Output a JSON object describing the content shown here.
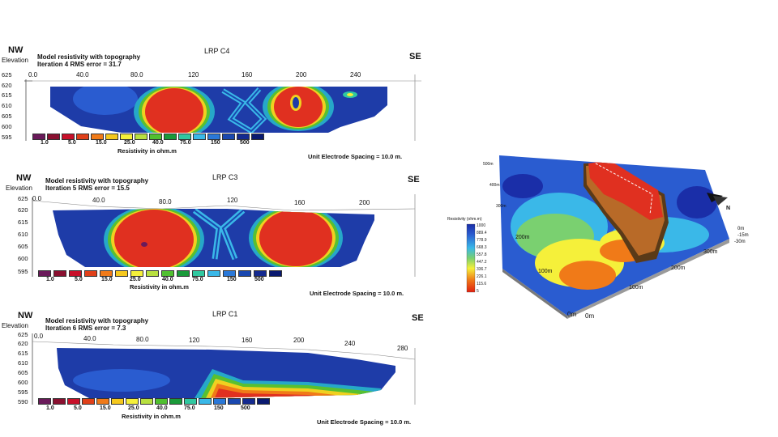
{
  "sections": [
    {
      "id": "c4",
      "nw": "NW",
      "se": "SE",
      "elevation": "Elevation",
      "title_line1": "Model resistivity with topography",
      "title_line2": "Iteration 4 RMS error = 31.7",
      "lrp": "LRP C4",
      "x_ticks": [
        "0.0",
        "40.0",
        "80.0",
        "120",
        "160",
        "200",
        "240"
      ],
      "y_ticks": [
        "625",
        "620",
        "615",
        "610",
        "605",
        "600",
        "595"
      ],
      "legend_labels": [
        "1.0",
        "5.0",
        "15.0",
        "25.0",
        "40.0",
        "75.0",
        "150",
        "500"
      ],
      "resistivity_label": "Resistivity in ohm.m",
      "unit_spacing": "Unit Electrode Spacing = 10.0 m."
    },
    {
      "id": "c3",
      "nw": "NW",
      "se": "SE",
      "elevation": "Elevation",
      "title_line1": "Model resistivity with topography",
      "title_line2": "Iteration 5 RMS error = 15.5",
      "lrp": "LRP C3",
      "x_ticks": [
        "0.0",
        "40.0",
        "80.0",
        "120",
        "160",
        "200"
      ],
      "y_ticks": [
        "625",
        "620",
        "615",
        "610",
        "605",
        "600",
        "595"
      ],
      "legend_labels": [
        "1.0",
        "5.0",
        "15.0",
        "25.0",
        "40.0",
        "75.0",
        "150",
        "500"
      ],
      "resistivity_label": "Resistivity in ohm.m",
      "unit_spacing": "Unit Electrode Spacing = 10.0 m."
    },
    {
      "id": "c1",
      "nw": "NW",
      "se": "SE",
      "elevation": "Elevation",
      "title_line1": "Model resistivity with topography",
      "title_line2": "Iteration 6 RMS error = 7.3",
      "lrp": "LRP C1",
      "x_ticks": [
        "0.0",
        "40.0",
        "80.0",
        "120",
        "160",
        "200",
        "240",
        "280"
      ],
      "y_ticks": [
        "625",
        "620",
        "615",
        "610",
        "605",
        "600",
        "595",
        "590"
      ],
      "legend_labels": [
        "1.0",
        "5.0",
        "15.0",
        "25.0",
        "40.0",
        "75.0",
        "150",
        "500"
      ],
      "resistivity_label": "Resistivity in ohm.m",
      "unit_spacing": "Unit Electrode Spacing = 10.0 m."
    }
  ],
  "legend_colors": [
    "#6a1a5a",
    "#8a1030",
    "#c8102a",
    "#e0401a",
    "#f07a18",
    "#f5c81e",
    "#f5f03a",
    "#b8e040",
    "#50c030",
    "#1a9a3a",
    "#30c8a0",
    "#3ab8e8",
    "#2a78d8",
    "#1a48b0",
    "#142a90",
    "#0a1a70"
  ],
  "model3d": {
    "colorbar_title": "Resistivity (ohm.m)",
    "colorbar_ticks": [
      "1000",
      "889.4",
      "778.9",
      "668.3",
      "557.8",
      "447.2",
      "336.7",
      "226.1",
      "115.6",
      "5"
    ],
    "axis_labels": {
      "left_top": "500m",
      "left_2": "400m",
      "left_3": "300m",
      "left_4": "200m",
      "left_5": "100m",
      "origin_left": "0m",
      "origin_bottom": "0m",
      "bottom_1": "100m",
      "bottom_2": "200m",
      "bottom_3": "300m",
      "depth_0": "0m",
      "depth_1": "-15m",
      "depth_2": "-30m"
    },
    "north": "N"
  }
}
